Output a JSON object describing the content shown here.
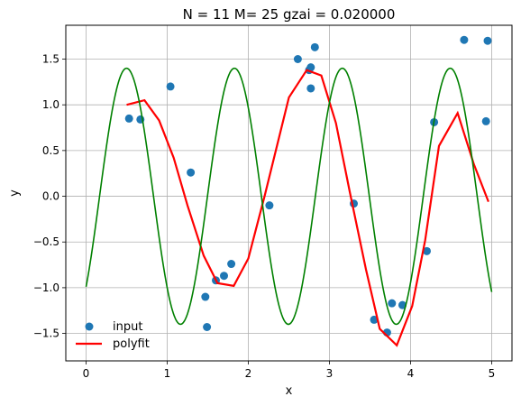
{
  "chart_data": {
    "type": "line",
    "title": "N = 11 M= 25  gzai = 0.020000",
    "xlabel": "x",
    "ylabel": "y",
    "xlim": [
      -0.25,
      5.25
    ],
    "ylim": [
      -1.8,
      1.87
    ],
    "x_ticks": [
      0,
      1,
      2,
      3,
      4,
      5
    ],
    "y_ticks": [
      -1.5,
      -1.0,
      -0.5,
      0.0,
      0.5,
      1.0,
      1.5
    ],
    "x_tick_labels": [
      "0",
      "1",
      "2",
      "3",
      "4",
      "5"
    ],
    "y_tick_labels": [
      "−1.5",
      "−1.0",
      "−0.5",
      "0.0",
      "0.5",
      "1.0",
      "1.5"
    ],
    "grid": true,
    "legend_position": "lower-left",
    "legend": [
      {
        "label": "input",
        "marker": "circle",
        "color": "#1f77b4"
      },
      {
        "label": "polyfit",
        "marker": "line",
        "color": "#ff0000"
      }
    ],
    "series": [
      {
        "name": "input",
        "kind": "scatter",
        "color": "#1f77b4",
        "points": [
          [
            0.53,
            0.85
          ],
          [
            0.67,
            0.84
          ],
          [
            1.04,
            1.2
          ],
          [
            1.29,
            0.26
          ],
          [
            1.47,
            -1.1
          ],
          [
            1.49,
            -1.43
          ],
          [
            1.6,
            -0.92
          ],
          [
            1.7,
            -0.87
          ],
          [
            1.79,
            -0.74
          ],
          [
            2.26,
            -0.1
          ],
          [
            2.61,
            1.5
          ],
          [
            2.75,
            1.38
          ],
          [
            2.77,
            1.41
          ],
          [
            2.77,
            1.18
          ],
          [
            2.82,
            1.63
          ],
          [
            3.3,
            -0.08
          ],
          [
            3.55,
            -1.35
          ],
          [
            3.71,
            -1.49
          ],
          [
            3.77,
            -1.17
          ],
          [
            3.9,
            -1.19
          ],
          [
            4.2,
            -0.6
          ],
          [
            4.29,
            0.81
          ],
          [
            4.66,
            1.71
          ],
          [
            4.93,
            0.82
          ],
          [
            4.95,
            1.7
          ]
        ]
      },
      {
        "name": "polyfit",
        "kind": "line",
        "color": "#ff0000",
        "points": [
          [
            0.5,
            1.0
          ],
          [
            0.72,
            1.05
          ],
          [
            0.9,
            0.83
          ],
          [
            1.08,
            0.42
          ],
          [
            1.25,
            -0.1
          ],
          [
            1.45,
            -0.65
          ],
          [
            1.62,
            -0.95
          ],
          [
            1.82,
            -0.98
          ],
          [
            2.0,
            -0.68
          ],
          [
            2.2,
            0.0
          ],
          [
            2.5,
            1.08
          ],
          [
            2.72,
            1.38
          ],
          [
            2.9,
            1.32
          ],
          [
            3.08,
            0.8
          ],
          [
            3.25,
            0.05
          ],
          [
            3.45,
            -0.8
          ],
          [
            3.62,
            -1.45
          ],
          [
            3.83,
            -1.63
          ],
          [
            4.02,
            -1.2
          ],
          [
            4.18,
            -0.48
          ],
          [
            4.35,
            0.55
          ],
          [
            4.58,
            0.91
          ],
          [
            4.78,
            0.35
          ],
          [
            4.96,
            -0.06
          ]
        ]
      },
      {
        "kind": "line",
        "color": "#008000",
        "function": "1.4*sin(2*pi*x/1.33 - pi/4)",
        "x_range": [
          0,
          5
        ]
      }
    ]
  }
}
